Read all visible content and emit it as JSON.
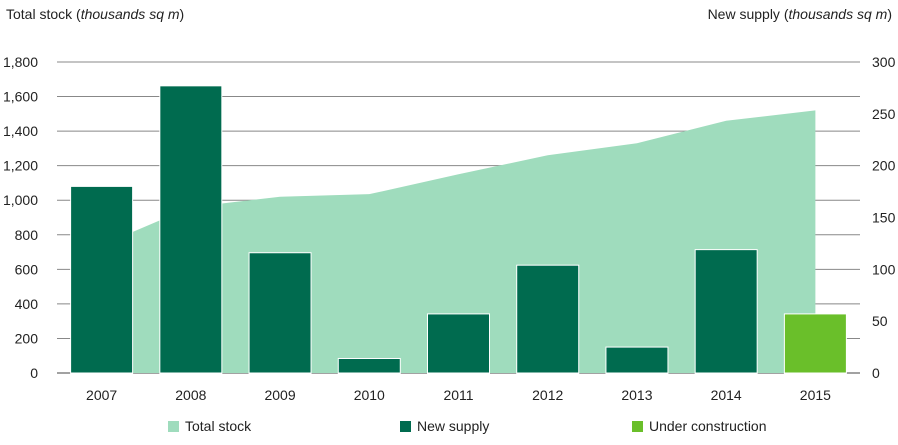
{
  "titles": {
    "left_prefix": "Total stock (",
    "left_italic": "thousands sq m",
    "left_suffix": ")",
    "right_prefix": "New supply (",
    "right_italic": "thousands sq m",
    "right_suffix": ")"
  },
  "legend": {
    "total_stock": "Total stock",
    "new_supply": "New supply",
    "under_construction": "Under construction"
  },
  "colors": {
    "total_stock": "#9fdcbd",
    "new_supply": "#006b4f",
    "under_construction": "#6abf2a",
    "grid": "#888888",
    "text": "#222222"
  },
  "chart_data": {
    "type": "bar",
    "categories": [
      "2007",
      "2008",
      "2009",
      "2010",
      "2011",
      "2012",
      "2013",
      "2014",
      "2015"
    ],
    "series": [
      {
        "name": "Total stock",
        "type": "area",
        "axis": "left",
        "values": [
          740,
          960,
          1020,
          1035,
          1150,
          1260,
          1330,
          1460,
          1520
        ]
      },
      {
        "name": "New supply",
        "type": "bar",
        "axis": "right",
        "values": [
          180,
          277,
          116,
          14,
          57,
          104,
          25,
          119,
          null
        ]
      },
      {
        "name": "Under construction",
        "type": "bar",
        "axis": "right",
        "values": [
          null,
          null,
          null,
          null,
          null,
          null,
          null,
          null,
          57
        ]
      }
    ],
    "left_axis": {
      "ylim": [
        0,
        1800
      ],
      "ticks": [
        "0",
        "200",
        "400",
        "600",
        "800",
        "1,000",
        "1,200",
        "1,400",
        "1,600",
        "1,800"
      ]
    },
    "right_axis": {
      "ylim": [
        0,
        300
      ],
      "ticks": [
        "0",
        "50",
        "100",
        "150",
        "200",
        "250",
        "300"
      ]
    },
    "grid": true,
    "legend_position": "bottom"
  }
}
